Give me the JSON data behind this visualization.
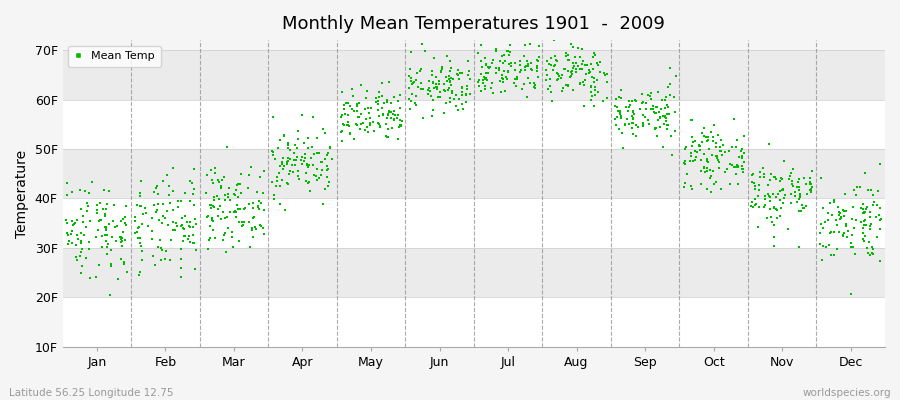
{
  "title": "Monthly Mean Temperatures 1901  -  2009",
  "ylabel": "Temperature",
  "dot_color": "#00bb00",
  "dot_size": 3,
  "legend_label": "Mean Temp",
  "ytick_labels": [
    "10F",
    "20F",
    "30F",
    "40F",
    "50F",
    "60F",
    "70F"
  ],
  "ytick_values": [
    10,
    20,
    30,
    40,
    50,
    60,
    70
  ],
  "month_names": [
    "Jan",
    "Feb",
    "Mar",
    "Apr",
    "May",
    "Jun",
    "Jul",
    "Aug",
    "Sep",
    "Oct",
    "Nov",
    "Dec"
  ],
  "background_color": "#f5f5f5",
  "plot_bg_color": "#f5f5f5",
  "dashed_line_color": "#888888",
  "subtitle_left": "Latitude 56.25 Longitude 12.75",
  "subtitle_right": "worldspecies.org",
  "ylim_min": 10,
  "ylim_max": 72,
  "stripe_colors": [
    "#ffffff",
    "#ebebeb"
  ],
  "months_mean_C": [
    1.0,
    1.2,
    3.5,
    8.5,
    13.5,
    17.0,
    19.0,
    18.5,
    14.0,
    9.0,
    5.0,
    2.0
  ],
  "months_std_C": [
    2.8,
    2.8,
    2.2,
    2.0,
    1.6,
    1.6,
    1.6,
    1.6,
    1.6,
    1.6,
    2.0,
    2.4
  ],
  "n_years": 109,
  "random_seed": 42
}
